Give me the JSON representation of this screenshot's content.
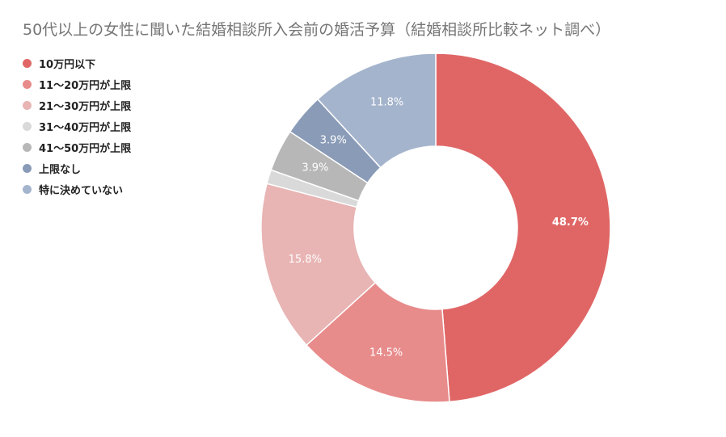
{
  "chart_data": {
    "type": "pie",
    "title": "50代以上の女性に聞いた結婚相談所入会前の婚活予算（結婚相談所比較ネット調べ）",
    "unit": "%",
    "legend_position": "left-top",
    "slices": [
      {
        "label": "10万円以下",
        "value": 48.7,
        "value_label": "48.7%",
        "color": "#e06666"
      },
      {
        "label": "11〜20万円が上限",
        "value": 14.5,
        "value_label": "14.5%",
        "color": "#e88b8b"
      },
      {
        "label": "21〜30万円が上限",
        "value": 15.8,
        "value_label": "15.8%",
        "color": "#e8b4b4"
      },
      {
        "label": "31〜40万円が上限",
        "value": 1.3,
        "value_label": "",
        "color": "#d9d9d9"
      },
      {
        "label": "41〜50万円が上限",
        "value": 3.9,
        "value_label": "3.9%",
        "color": "#b7b7b7"
      },
      {
        "label": "上限なし",
        "value": 3.9,
        "value_label": "3.9%",
        "color": "#8a9bb8"
      },
      {
        "label": "特に決めていない",
        "value": 11.8,
        "value_label": "11.8%",
        "color": "#a4b4cc"
      }
    ]
  }
}
